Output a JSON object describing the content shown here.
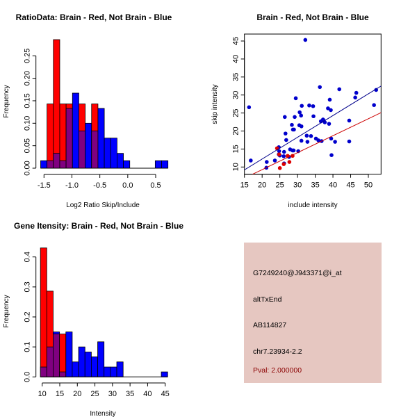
{
  "chart_data": [
    {
      "type": "bar",
      "title": "RatioData: Brain - Red, Not Brain - Blue",
      "xlabel": "Log2 Ratio Skip/Include",
      "ylabel": "Frequency",
      "xlim": [
        -1.6,
        0.8
      ],
      "ylim": [
        0,
        0.29
      ],
      "xticks": [
        -1.5,
        -1.0,
        -0.5,
        0.0,
        0.5
      ],
      "xtick_labels": [
        "-1.5",
        "-1.0",
        "-0.5",
        "0.0",
        "0.5"
      ],
      "yticks": [
        0,
        0.05,
        0.1,
        0.15,
        0.2,
        0.25
      ],
      "ytick_labels": [
        "0.00",
        "0.05",
        "0.10",
        "0.15",
        "0.20",
        "0.25"
      ],
      "bin_start": -1.56,
      "bin_width": 0.114,
      "series": [
        {
          "name": "Brain",
          "color": "#ff0000",
          "values": [
            0,
            0.143,
            0.286,
            0.143,
            0.143,
            0,
            0.143,
            0,
            0.143,
            0,
            0,
            0,
            0,
            0,
            0,
            0,
            0,
            0,
            0,
            0
          ]
        },
        {
          "name": "Not Brain",
          "color": "#0000ff",
          "values": [
            0.0167,
            0.0167,
            0.033,
            0.0167,
            0.133,
            0.167,
            0.083,
            0.1,
            0.083,
            0.133,
            0.067,
            0.067,
            0.033,
            0.0167,
            0,
            0,
            0,
            0,
            0.0167,
            0.0167
          ]
        }
      ],
      "overlap_color": "#800080"
    },
    {
      "type": "scatter",
      "title": "Brain - Red, Not Brain - Blue",
      "xlabel": "include intensity",
      "ylabel": "skip intensity",
      "xlim": [
        15,
        53.6
      ],
      "ylim": [
        8,
        47
      ],
      "xticks": [
        15,
        20,
        25,
        30,
        35,
        40,
        45,
        50
      ],
      "xtick_labels": [
        "15",
        "20",
        "25",
        "30",
        "35",
        "40",
        "45",
        "50"
      ],
      "yticks": [
        10,
        15,
        20,
        25,
        30,
        35,
        40,
        45
      ],
      "ytick_labels": [
        "10",
        "15",
        "20",
        "25",
        "30",
        "35",
        "40",
        "45"
      ],
      "series": [
        {
          "name": "Not Brain",
          "color": "#0000cc",
          "points": [
            [
              32.2,
              45.3
            ],
            [
              16.3,
              26.6
            ],
            [
              16.8,
              11.8
            ],
            [
              21.3,
              11.4
            ],
            [
              21.2,
              9.8
            ],
            [
              23.6,
              11.8
            ],
            [
              24.7,
              13.5
            ],
            [
              24.7,
              15.5
            ],
            [
              24.8,
              14.4
            ],
            [
              25,
              13.2
            ],
            [
              26.1,
              13
            ],
            [
              26.2,
              14.2
            ],
            [
              26.2,
              11
            ],
            [
              26.4,
              23.9
            ],
            [
              26.6,
              19.3
            ],
            [
              26.8,
              17.5
            ],
            [
              27.6,
              12.8
            ],
            [
              27.9,
              14.9
            ],
            [
              28.4,
              21.7
            ],
            [
              28.6,
              14.6
            ],
            [
              28.7,
              20.4
            ],
            [
              29,
              20.4
            ],
            [
              28.9,
              14.6
            ],
            [
              29.2,
              23.9
            ],
            [
              29.5,
              29.1
            ],
            [
              30.2,
              14.4
            ],
            [
              30.5,
              21.6
            ],
            [
              30.6,
              25.2
            ],
            [
              31,
              24.3
            ],
            [
              31.1,
              21.3
            ],
            [
              31.1,
              17.3
            ],
            [
              31.2,
              27
            ],
            [
              32.6,
              18.7
            ],
            [
              32.8,
              17
            ],
            [
              33.3,
              27.1
            ],
            [
              33.8,
              18.6
            ],
            [
              34.4,
              26.9
            ],
            [
              34.5,
              24.1
            ],
            [
              35.2,
              17.9
            ],
            [
              35.9,
              17.4
            ],
            [
              36.3,
              32.2
            ],
            [
              36.6,
              22.7
            ],
            [
              36.8,
              17.2
            ],
            [
              37.2,
              23.2
            ],
            [
              37.4,
              22.9
            ],
            [
              37.7,
              22.4
            ],
            [
              38.6,
              26.3
            ],
            [
              39.1,
              28.7
            ],
            [
              38.9,
              22
            ],
            [
              39.4,
              25.8
            ],
            [
              39.5,
              17.9
            ],
            [
              39.6,
              13.3
            ],
            [
              40.6,
              17
            ],
            [
              41.8,
              31.6
            ],
            [
              44.6,
              22.9
            ],
            [
              44.6,
              17.1
            ],
            [
              46.3,
              29.3
            ],
            [
              46.6,
              30.6
            ],
            [
              51.6,
              27.2
            ],
            [
              52.2,
              31.4
            ]
          ],
          "fit_line": [
            [
              15,
              9.2
            ],
            [
              53.6,
              32.5
            ]
          ],
          "line_color": "#00008b"
        },
        {
          "name": "Brain",
          "color": "#dd0000",
          "points": [
            [
              24.2,
              15.2
            ],
            [
              24.8,
              13.5
            ],
            [
              25,
              9.7
            ],
            [
              26.1,
              10.8
            ],
            [
              27.2,
              13.1
            ],
            [
              27.7,
              11.4
            ],
            [
              28.6,
              13.1
            ]
          ],
          "fit_line": [
            [
              17.3,
              8
            ],
            [
              53.6,
              25.1
            ]
          ],
          "line_color": "#cc0000"
        }
      ]
    },
    {
      "type": "bar",
      "title": "Gene Itensity: Brain - Red, Not Brain - Blue",
      "xlabel": "Intensity",
      "ylabel": "Frequency",
      "xlim": [
        9,
        47
      ],
      "ylim": [
        0,
        0.44
      ],
      "xticks": [
        10,
        15,
        20,
        25,
        30,
        35,
        40,
        45
      ],
      "xtick_labels": [
        "10",
        "15",
        "20",
        "25",
        "30",
        "35",
        "40",
        "45"
      ],
      "yticks": [
        0,
        0.1,
        0.2,
        0.3,
        0.4
      ],
      "ytick_labels": [
        "0.0",
        "0.1",
        "0.2",
        "0.3",
        "0.4"
      ],
      "bin_start": 9.5,
      "bin_width": 1.81,
      "series": [
        {
          "name": "Brain",
          "color": "#ff0000",
          "values": [
            0.43,
            0.286,
            0.143,
            0.143,
            0,
            0,
            0,
            0,
            0,
            0,
            0,
            0,
            0,
            0,
            0,
            0,
            0,
            0,
            0,
            0
          ]
        },
        {
          "name": "Not Brain",
          "color": "#0000ff",
          "values": [
            0.033,
            0.1,
            0.15,
            0.0167,
            0.15,
            0.05,
            0.1,
            0.083,
            0.067,
            0.117,
            0.033,
            0.033,
            0.05,
            0,
            0,
            0,
            0,
            0,
            0,
            0.0167
          ]
        }
      ],
      "overlap_color": "#800080"
    }
  ],
  "info_panel": {
    "background": "#e6c7c1",
    "probe_id": "G7249240@J943371@i_at",
    "event_type": "altTxEnd",
    "accession": "AB114827",
    "location": "chr7.23934-2.2",
    "pval": "Pval: 2.000000",
    "pval_color": "#8b0000"
  }
}
